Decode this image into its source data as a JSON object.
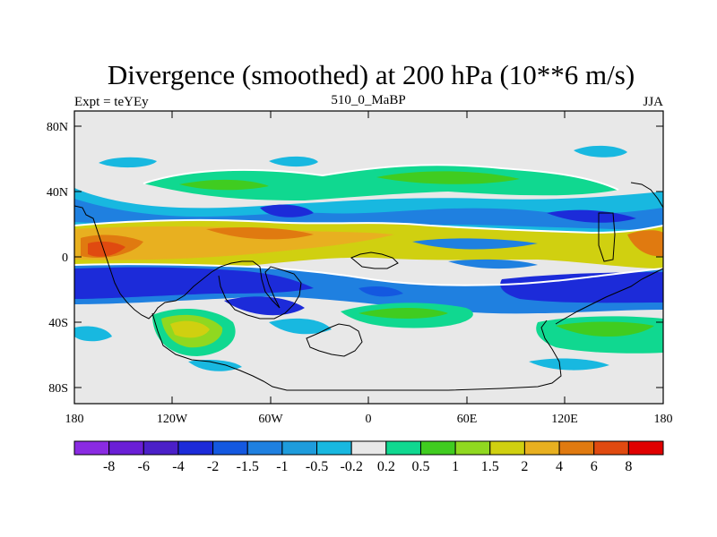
{
  "title": "Divergence (smoothed) at 200 hPa (10**6 m/s)",
  "left_label": "Expt = teYEy",
  "center_label": "510_0_MaBP",
  "right_label": "JJA",
  "lat_ticks": [
    "80N",
    "40N",
    "0",
    "40S",
    "80S"
  ],
  "lon_ticks": [
    "180",
    "120W",
    "60W",
    "0",
    "60E",
    "120E",
    "180"
  ],
  "colorbar": {
    "labels": [
      "-8",
      "-6",
      "-4",
      "-2",
      "-1.5",
      "-1",
      "-0.5",
      "-0.2",
      "0.2",
      "0.5",
      "1",
      "1.5",
      "2",
      "4",
      "6",
      "8"
    ],
    "colors": [
      "#8a2be2",
      "#6a1fd6",
      "#4b20c8",
      "#1c2bd9",
      "#1458e0",
      "#1f80e0",
      "#1e9cdc",
      "#18b8e0",
      "#e8e8e8",
      "#10d890",
      "#40cc20",
      "#90d820",
      "#d0d010",
      "#e8b020",
      "#e07a10",
      "#e04a10",
      "#e00000"
    ]
  },
  "colors": {
    "ocean_bg": "#e8e8e8",
    "coast": "#000000",
    "contour_zero": "#ffffff"
  }
}
